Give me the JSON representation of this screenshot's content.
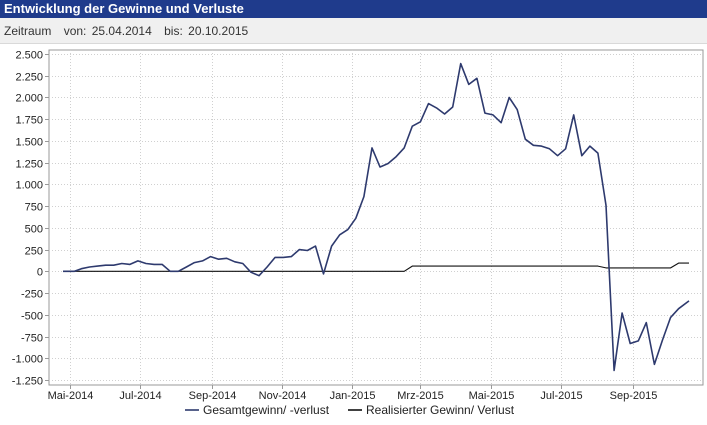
{
  "header": {
    "title": "Entwicklung der Gewinne und Verluste",
    "period_label": "Zeitraum",
    "from_label": "von:",
    "from_date": "25.04.2014",
    "to_label": "bis:",
    "to_date": "20.10.2015"
  },
  "chart_data": {
    "type": "line",
    "title": "",
    "xlabel": "",
    "ylabel": "",
    "ylim": [
      -1250,
      2500
    ],
    "yticks": [
      2500,
      2250,
      2000,
      1750,
      1500,
      1250,
      1000,
      750,
      500,
      250,
      0,
      -250,
      -500,
      -750,
      -1000,
      -1250
    ],
    "ytick_labels": [
      "2.500",
      "2.250",
      "2.000",
      "1.750",
      "1.500",
      "1.250",
      "1.000",
      "750",
      "500",
      "250",
      "0",
      "-250",
      "-500",
      "-750",
      "-1.000",
      "-1.250"
    ],
    "xlim": [
      "2014-04-25",
      "2015-10-20"
    ],
    "xticks": [
      "2014-05-01",
      "2014-07-01",
      "2014-09-01",
      "2014-11-01",
      "2015-01-01",
      "2015-03-01",
      "2015-05-01",
      "2015-07-01",
      "2015-09-01"
    ],
    "xtick_labels": [
      "Mai-2014",
      "Jul-2014",
      "Sep-2014",
      "Nov-2014",
      "Jan-2015",
      "Mrz-2015",
      "Mai-2015",
      "Jul-2015",
      "Sep-2015"
    ],
    "grid": true,
    "legend_position": "bottom",
    "series": [
      {
        "name": "Gesamtgewinn/ -verlust",
        "color": "#2e3a6e",
        "x": [
          "2014-04-25",
          "2014-05-05",
          "2014-05-11",
          "2014-05-18",
          "2014-05-25",
          "2014-06-01",
          "2014-06-08",
          "2014-06-15",
          "2014-06-22",
          "2014-06-29",
          "2014-07-06",
          "2014-07-13",
          "2014-07-20",
          "2014-07-27",
          "2014-08-03",
          "2014-08-10",
          "2014-08-17",
          "2014-08-24",
          "2014-08-31",
          "2014-09-07",
          "2014-09-14",
          "2014-09-21",
          "2014-09-28",
          "2014-10-05",
          "2014-10-12",
          "2014-10-19",
          "2014-10-26",
          "2014-11-02",
          "2014-11-09",
          "2014-11-16",
          "2014-11-23",
          "2014-11-30",
          "2014-12-07",
          "2014-12-14",
          "2014-12-21",
          "2014-12-28",
          "2015-01-04",
          "2015-01-11",
          "2015-01-18",
          "2015-01-25",
          "2015-02-01",
          "2015-02-08",
          "2015-02-15",
          "2015-02-22",
          "2015-03-01",
          "2015-03-08",
          "2015-03-15",
          "2015-03-22",
          "2015-03-29",
          "2015-04-05",
          "2015-04-12",
          "2015-04-19",
          "2015-04-26",
          "2015-05-03",
          "2015-05-10",
          "2015-05-17",
          "2015-05-24",
          "2015-05-31",
          "2015-06-07",
          "2015-06-14",
          "2015-06-21",
          "2015-06-28",
          "2015-07-05",
          "2015-07-12",
          "2015-07-19",
          "2015-07-26",
          "2015-08-02",
          "2015-08-09",
          "2015-08-16",
          "2015-08-23",
          "2015-08-30",
          "2015-09-06",
          "2015-09-13",
          "2015-09-20",
          "2015-09-27",
          "2015-10-04",
          "2015-10-11",
          "2015-10-20"
        ],
        "y": [
          0,
          0,
          30,
          50,
          60,
          70,
          70,
          90,
          80,
          120,
          90,
          80,
          80,
          0,
          0,
          50,
          100,
          120,
          170,
          140,
          150,
          110,
          90,
          -10,
          -50,
          50,
          160,
          160,
          170,
          250,
          240,
          290,
          -30,
          290,
          420,
          480,
          610,
          860,
          1420,
          1200,
          1240,
          1320,
          1420,
          1670,
          1720,
          1930,
          1880,
          1810,
          1890,
          2390,
          2150,
          2220,
          1820,
          1800,
          1710,
          2000,
          1860,
          1520,
          1450,
          1440,
          1410,
          1330,
          1410,
          1800,
          1330,
          1440,
          1360,
          760,
          -1140,
          -480,
          -830,
          -800,
          -590,
          -1070,
          -790,
          -530,
          -430,
          -340
        ]
      },
      {
        "name": "Realisierter Gewinn/ Verlust",
        "color": "#111111",
        "x": [
          "2014-04-25",
          "2015-02-15",
          "2015-02-22",
          "2015-08-02",
          "2015-08-09",
          "2015-10-04",
          "2015-10-11",
          "2015-10-20"
        ],
        "y": [
          0,
          0,
          60,
          60,
          40,
          40,
          95,
          95
        ]
      }
    ]
  }
}
